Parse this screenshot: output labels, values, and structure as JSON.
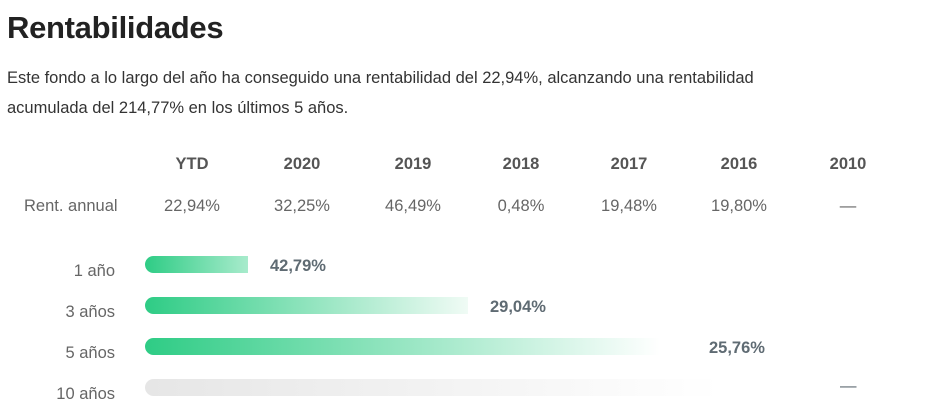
{
  "title": "Rentabilidades",
  "description": "Este fondo a lo largo del año ha conseguido una rentabilidad del 22,94%, alcanzando una rentabilidad acumulada del 214,77% en los últimos 5 años.",
  "table": {
    "row_label": "Rent. annual",
    "columns": [
      "YTD",
      "2020",
      "2019",
      "2018",
      "2017",
      "2016",
      "2010"
    ],
    "values": [
      "22,94%",
      "32,25%",
      "46,49%",
      "0,48%",
      "19,48%",
      "19,80%",
      "—"
    ]
  },
  "bars": [
    {
      "label": "1 año",
      "value": "42,79%"
    },
    {
      "label": "3 años",
      "value": "29,04%"
    },
    {
      "label": "5 años",
      "value": "25,76%"
    },
    {
      "label": "10 años",
      "value": "—"
    }
  ],
  "colors": {
    "accent": "#2ecc85",
    "empty": "#e8e8e8"
  }
}
